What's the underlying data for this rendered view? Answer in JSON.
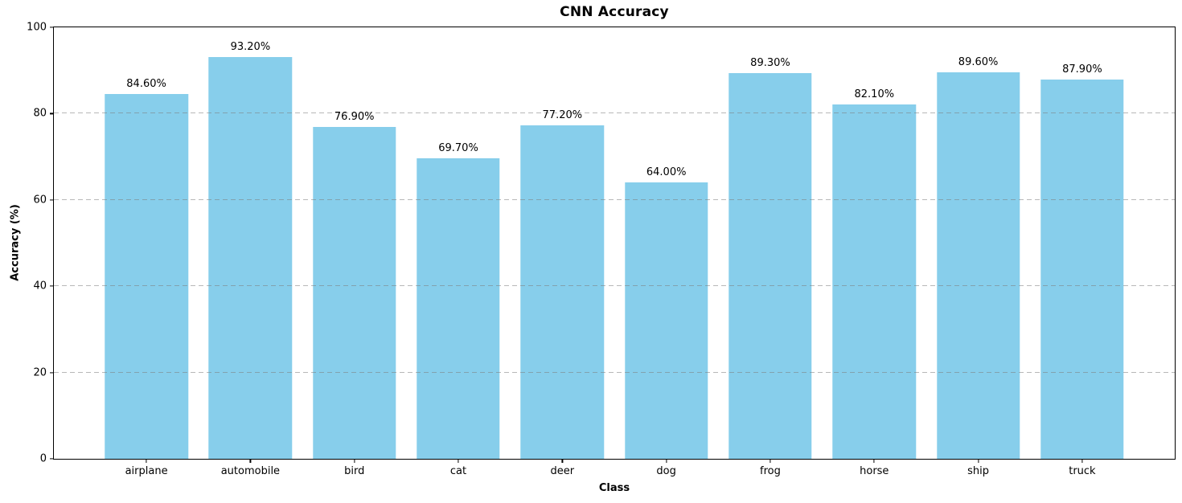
{
  "chart_data": {
    "type": "bar",
    "title": "CNN Accuracy",
    "xlabel": "Class",
    "ylabel": "Accuracy (%)",
    "categories": [
      "airplane",
      "automobile",
      "bird",
      "cat",
      "deer",
      "dog",
      "frog",
      "horse",
      "ship",
      "truck"
    ],
    "values": [
      84.6,
      93.2,
      76.9,
      69.7,
      77.2,
      64.0,
      89.3,
      82.1,
      89.6,
      87.9
    ],
    "value_labels": [
      "84.60%",
      "93.20%",
      "76.90%",
      "69.70%",
      "77.20%",
      "64.00%",
      "89.30%",
      "82.10%",
      "89.60%",
      "87.90%"
    ],
    "ylim": [
      0,
      100
    ],
    "yticks": [
      0,
      20,
      40,
      60,
      80,
      100
    ],
    "gridlines": [
      20,
      40,
      60,
      80
    ],
    "grid": "dashed-horizontal",
    "legend": "none",
    "bar_color": "#87CEEB",
    "grid_color": "#b0b0b0",
    "spine_color": "#000000",
    "background": "#ffffff"
  }
}
